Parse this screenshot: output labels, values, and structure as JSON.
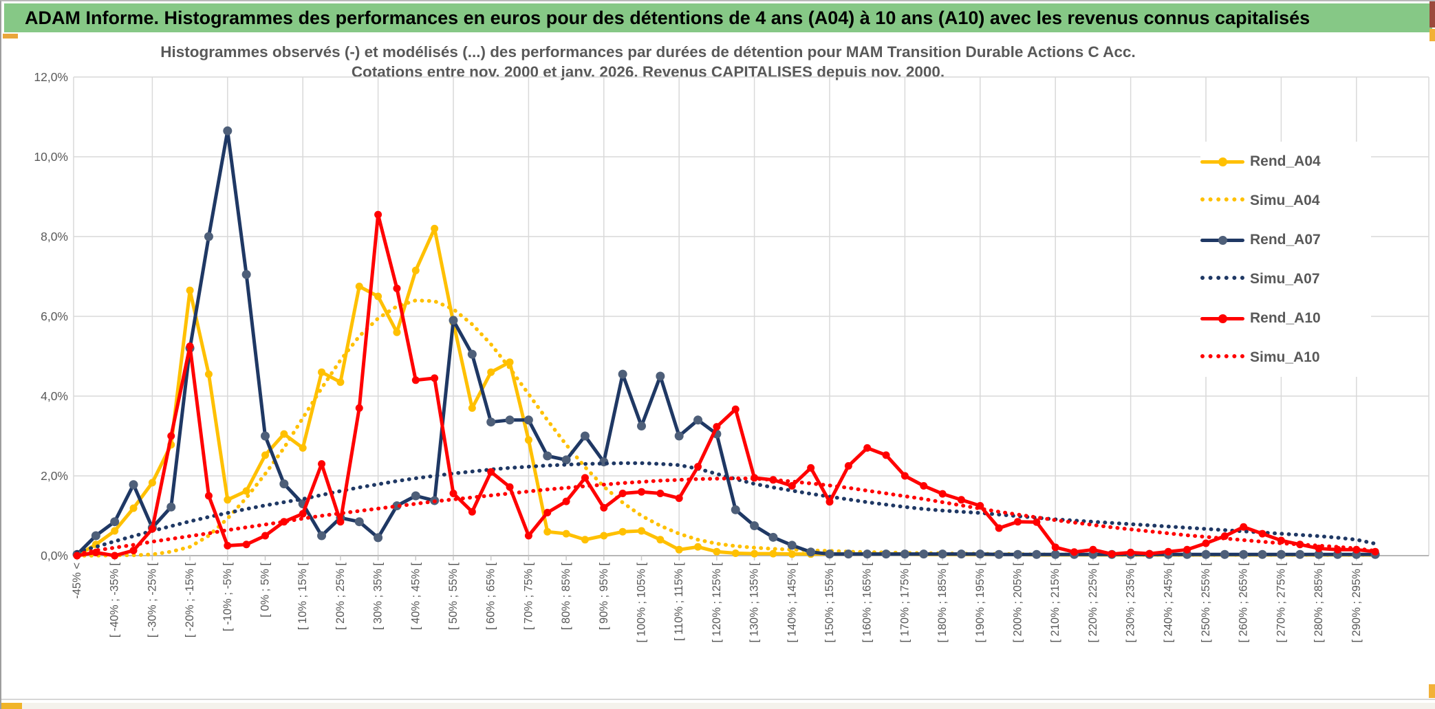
{
  "banner": {
    "title": "ADAM Informe. Histogrammes des performances en euros pour des détentions de 4 ans (A04) à 10 ans (A10) avec les revenus connus capitalisés"
  },
  "chart_data": {
    "type": "line",
    "title": "Histogrammes observés (-) et modélisés (...) des performances par durées de détention pour MAM Transition Durable Actions C Acc.",
    "subtitle": "Cotations entre nov. 2000 et janv. 2026. Revenus CAPITALISES depuis nov. 2000.",
    "xlabel": "",
    "ylabel": "",
    "ylim": [
      0,
      12
    ],
    "y_ticks_percent": [
      0,
      2,
      4,
      6,
      8,
      10,
      12
    ],
    "y_tick_labels": [
      "0,0%",
      "2,0%",
      "4,0%",
      "6,0%",
      "8,0%",
      "10,0%",
      "12,0%"
    ],
    "x_labels": [
      "-45% <",
      "[ -40% ; -35% [",
      "[ -30% ; -25% [",
      "[ -20% ; -15% [",
      "[ -10% ; -5% [",
      "[ 0% ; 5% [",
      "[ 10% ; 15% [",
      "[ 20% ; 25% [",
      "[ 30% ; 35% [",
      "[ 40% ; 45% [",
      "[ 50% ; 55% [",
      "[ 60% ; 65% [",
      "[ 70% ; 75% [",
      "[ 80% ; 85% [",
      "[ 90% ; 95% [",
      "[ 100% ; 105% [",
      "[ 110% ; 115% [",
      "[ 120% ; 125% [",
      "[ 130% ; 135% [",
      "[ 140% ; 145% [",
      "[ 150% ; 155% [",
      "[ 160% ; 165% [",
      "[ 170% ; 175% [",
      "[ 180% ; 185% [",
      "[ 190% ; 195% [",
      "[ 200% ; 205% [",
      "[ 210% ; 215% [",
      "[ 220% ; 225% [",
      "[ 230% ; 235% [",
      "[ 240% ; 245% [",
      "[ 250% ; 255% [",
      "[ 260% ; 265% [",
      "[ 270% ; 275% [",
      "[ 280% ; 285% [",
      "[ 290% ; 295% ["
    ],
    "points_per_label": 2,
    "num_points": 70,
    "grid_every_points": 4,
    "legend_position": "right",
    "legend_entries": [
      "Rend_A04",
      "Simu_A04",
      "Rend_A07",
      "Simu_A07",
      "Rend_A10",
      "Simu_A10"
    ],
    "colors": {
      "gold": "#FFC000",
      "navy": "#1F3864",
      "navy_marker": "#4E5F79",
      "red": "#FF0000",
      "grid": "#D9D9D9",
      "axis": "#ABABAB",
      "text": "#595959",
      "banner_green": "#86C886"
    },
    "series": [
      {
        "name": "Rend_A04",
        "style": "solid",
        "color": "#FFC000",
        "marker": "#FFC000",
        "values": [
          0.0,
          0.28,
          0.62,
          1.19,
          1.83,
          2.78,
          6.65,
          4.55,
          1.4,
          1.62,
          2.52,
          3.05,
          2.7,
          4.6,
          4.35,
          6.75,
          6.5,
          5.6,
          7.15,
          8.2,
          5.85,
          3.7,
          4.6,
          4.85,
          2.9,
          0.6,
          0.55,
          0.4,
          0.5,
          0.6,
          0.62,
          0.4,
          0.15,
          0.22,
          0.1,
          0.06,
          0.05,
          0.05,
          0.04,
          0.04,
          0.04,
          0.04,
          0.04,
          0.04,
          0.04,
          0.03,
          0.03,
          0.03,
          0.03,
          0.03,
          0.03,
          0.02,
          0.02,
          0.02,
          0.02,
          0.02,
          0.02,
          0.02,
          0.02,
          0.02,
          0.02,
          0.02,
          0.02,
          0.02,
          0.02,
          0.02,
          0.02,
          0.02,
          0.02,
          0.02
        ]
      },
      {
        "name": "Simu_A04",
        "style": "dotted",
        "color": "#FFC000",
        "marker": null,
        "values": [
          0.0,
          0.0,
          0.01,
          0.01,
          0.03,
          0.1,
          0.22,
          0.5,
          0.93,
          1.45,
          2.05,
          2.7,
          3.45,
          4.2,
          4.9,
          5.5,
          5.95,
          6.25,
          6.4,
          6.38,
          6.18,
          5.8,
          5.3,
          4.7,
          4.05,
          3.4,
          2.78,
          2.22,
          1.73,
          1.33,
          1.0,
          0.75,
          0.55,
          0.4,
          0.3,
          0.24,
          0.2,
          0.17,
          0.15,
          0.13,
          0.12,
          0.1,
          0.09,
          0.08,
          0.07,
          0.06,
          0.06,
          0.05,
          0.05,
          0.04,
          0.04,
          0.03,
          0.03,
          0.03,
          0.03,
          0.02,
          0.02,
          0.02,
          0.02,
          0.02,
          0.02,
          0.02,
          0.02,
          0.02,
          0.02,
          0.02,
          0.02,
          0.02,
          0.02,
          0.02
        ]
      },
      {
        "name": "Rend_A07",
        "style": "solid",
        "color": "#1F3864",
        "marker": "#4E5F79",
        "values": [
          0.03,
          0.5,
          0.85,
          1.78,
          0.7,
          1.22,
          5.2,
          8.0,
          10.65,
          7.05,
          3.0,
          1.8,
          1.3,
          0.5,
          0.95,
          0.85,
          0.45,
          1.25,
          1.5,
          1.38,
          5.9,
          5.05,
          3.35,
          3.4,
          3.4,
          2.5,
          2.4,
          3.0,
          2.35,
          4.55,
          3.25,
          4.5,
          3.0,
          3.4,
          3.05,
          1.15,
          0.75,
          0.46,
          0.26,
          0.09,
          0.04,
          0.04,
          0.04,
          0.04,
          0.04,
          0.04,
          0.04,
          0.04,
          0.04,
          0.03,
          0.03,
          0.03,
          0.03,
          0.03,
          0.03,
          0.03,
          0.03,
          0.03,
          0.03,
          0.03,
          0.03,
          0.03,
          0.03,
          0.03,
          0.03,
          0.03,
          0.03,
          0.03,
          0.03,
          0.03
        ]
      },
      {
        "name": "Simu_A07",
        "style": "dotted",
        "color": "#1F3864",
        "marker": null,
        "values": [
          0.09,
          0.22,
          0.36,
          0.49,
          0.62,
          0.74,
          0.86,
          0.97,
          1.07,
          1.17,
          1.26,
          1.34,
          1.42,
          1.52,
          1.62,
          1.71,
          1.79,
          1.87,
          1.94,
          2.0,
          2.06,
          2.11,
          2.16,
          2.2,
          2.23,
          2.26,
          2.28,
          2.3,
          2.31,
          2.32,
          2.32,
          2.3,
          2.27,
          2.18,
          2.05,
          1.92,
          1.8,
          1.71,
          1.63,
          1.55,
          1.48,
          1.41,
          1.34,
          1.28,
          1.22,
          1.17,
          1.13,
          1.1,
          1.07,
          1.03,
          0.99,
          0.95,
          0.91,
          0.88,
          0.85,
          0.82,
          0.79,
          0.76,
          0.73,
          0.7,
          0.67,
          0.64,
          0.61,
          0.58,
          0.55,
          0.52,
          0.49,
          0.45,
          0.4,
          0.3
        ]
      },
      {
        "name": "Rend_A10",
        "style": "solid",
        "color": "#FF0000",
        "marker": "#FF0000",
        "values": [
          0.0,
          0.08,
          0.0,
          0.13,
          0.67,
          3.0,
          5.25,
          1.5,
          0.25,
          0.28,
          0.5,
          0.85,
          1.05,
          2.3,
          0.85,
          3.7,
          8.55,
          6.7,
          4.4,
          4.45,
          1.56,
          1.1,
          2.1,
          1.72,
          0.5,
          1.08,
          1.36,
          1.95,
          1.2,
          1.56,
          1.6,
          1.56,
          1.44,
          2.23,
          3.23,
          3.67,
          1.95,
          1.9,
          1.75,
          2.2,
          1.35,
          2.25,
          2.7,
          2.52,
          2.0,
          1.75,
          1.55,
          1.4,
          1.25,
          0.69,
          0.85,
          0.84,
          0.21,
          0.09,
          0.15,
          0.04,
          0.08,
          0.05,
          0.1,
          0.15,
          0.31,
          0.49,
          0.72,
          0.55,
          0.38,
          0.28,
          0.18,
          0.15,
          0.15,
          0.1
        ]
      },
      {
        "name": "Simu_A10",
        "style": "dotted",
        "color": "#FF0000",
        "marker": null,
        "values": [
          0.04,
          0.13,
          0.2,
          0.27,
          0.35,
          0.42,
          0.49,
          0.56,
          0.64,
          0.71,
          0.78,
          0.85,
          0.93,
          1.0,
          1.06,
          1.12,
          1.18,
          1.24,
          1.3,
          1.36,
          1.41,
          1.46,
          1.51,
          1.56,
          1.61,
          1.66,
          1.7,
          1.74,
          1.78,
          1.82,
          1.85,
          1.88,
          1.9,
          1.92,
          1.93,
          1.94,
          1.93,
          1.9,
          1.86,
          1.81,
          1.76,
          1.7,
          1.63,
          1.56,
          1.49,
          1.42,
          1.34,
          1.26,
          1.18,
          1.1,
          1.03,
          0.96,
          0.89,
          0.83,
          0.77,
          0.71,
          0.66,
          0.61,
          0.56,
          0.51,
          0.47,
          0.43,
          0.39,
          0.35,
          0.31,
          0.28,
          0.25,
          0.22,
          0.18,
          0.12
        ]
      }
    ]
  }
}
